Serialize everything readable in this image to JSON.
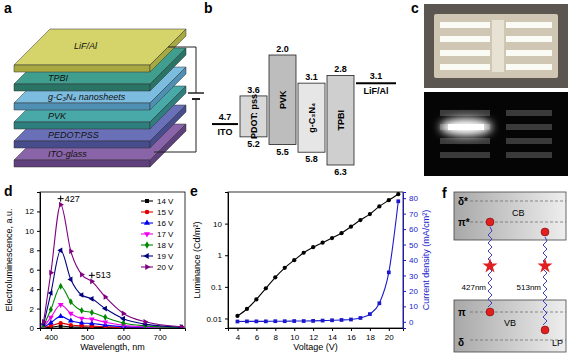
{
  "device_stack": {
    "panel_label": "a",
    "layers": [
      "LiF/Al",
      "TPBI",
      "g-C₃N₄ nanosheets",
      "PVK",
      "PEDOT:PSS",
      "ITO-glass"
    ]
  },
  "energy_diagram": {
    "panel_label": "b",
    "materials": [
      {
        "name": "ITO",
        "level": 4.7
      },
      {
        "name": "PDOT: pss",
        "lumo": 3.6,
        "homo": 5.2
      },
      {
        "name": "PVK",
        "lumo": {
          "value": 2,
          "label": "2.0"
        },
        "homo": 5.5
      },
      {
        "name": "g-C₃N₄",
        "lumo": 3.1,
        "homo": 5.8
      },
      {
        "name": "TPBI",
        "lumo": 2.8,
        "homo": 6.3
      },
      {
        "name": "LiF/Al",
        "level": 3.1
      }
    ]
  },
  "photos": {
    "panel_label": "c"
  },
  "chart_data": [
    {
      "panel_label": "d",
      "type": "line",
      "x_label": "Wavelength, nm",
      "y_label": "Electroluminescence, a.u.",
      "x": [
        380,
        400,
        427,
        455,
        485,
        513,
        550,
        600,
        660,
        760
      ],
      "xlim": [
        370,
        770
      ],
      "xticks": [
        400,
        500,
        600,
        700
      ],
      "ylim": [
        0,
        14
      ],
      "yticks": [
        0,
        2,
        4,
        6,
        8,
        10,
        12
      ],
      "legend": "upper right",
      "annotations": [
        "427",
        "513"
      ],
      "series": [
        {
          "name": "14 V",
          "color": "#000000",
          "marker": "square",
          "values": [
            0.01,
            0.09,
            0.2,
            0.12,
            0.09,
            0.08,
            0.05,
            0.02,
            0.01,
            0
          ]
        },
        {
          "name": "15 V",
          "color": "#e00000",
          "marker": "circle",
          "values": [
            0.03,
            0.23,
            0.5,
            0.31,
            0.22,
            0.19,
            0.13,
            0.06,
            0.03,
            0.01
          ]
        },
        {
          "name": "16 V",
          "color": "#0000ee",
          "marker": "triangle-up",
          "values": [
            0.06,
            0.54,
            1.2,
            0.74,
            0.52,
            0.46,
            0.3,
            0.14,
            0.06,
            0.01
          ]
        },
        {
          "name": "17 V",
          "color": "#ee00ee",
          "marker": "triangle-down",
          "values": [
            0.12,
            1.1,
            2.4,
            1.5,
            1.0,
            0.91,
            0.6,
            0.29,
            0.12,
            0.02
          ]
        },
        {
          "name": "18 V",
          "color": "#008800",
          "marker": "diamond",
          "values": [
            0.22,
            1.9,
            4.3,
            2.7,
            1.8,
            1.6,
            1.1,
            0.52,
            0.22,
            0.04
          ]
        },
        {
          "name": "19 V",
          "color": "#000080",
          "marker": "triangle-left",
          "values": [
            0.4,
            3.6,
            8.0,
            5.0,
            3.4,
            3.0,
            2.0,
            0.96,
            0.4,
            0.08
          ]
        },
        {
          "name": "20 V",
          "color": "#800080",
          "marker": "triangle-right",
          "values": [
            0.64,
            5.7,
            12.7,
            7.9,
            5.5,
            4.8,
            3.2,
            1.5,
            0.64,
            0.13
          ]
        }
      ]
    },
    {
      "panel_label": "e",
      "type": "line",
      "x_label": "Voltage (V)",
      "y_label": "Luminance (Cd/m²)",
      "y2_label": "Current density (mA/cm²)",
      "x": [
        4,
        5,
        6,
        7,
        8,
        9,
        10,
        11,
        12,
        13,
        14,
        15,
        16,
        17,
        18,
        19,
        20,
        21
      ],
      "xlim": [
        3,
        21.5
      ],
      "xticks": [
        4,
        6,
        8,
        10,
        12,
        14,
        16,
        18,
        20
      ],
      "log": "y",
      "ylim": [
        0.005,
        100
      ],
      "yticks": [
        0.01,
        0.1,
        1,
        10
      ],
      "y2lim": [
        -4,
        84
      ],
      "y2ticks": [
        0,
        10,
        20,
        30,
        40,
        50,
        60,
        70,
        80
      ],
      "series": [
        {
          "color": "#000000",
          "marker": "circle",
          "values": [
            0.012,
            0.02,
            0.04,
            0.09,
            0.2,
            0.4,
            0.7,
            1.2,
            1.8,
            2.5,
            3.5,
            5,
            8,
            13,
            20,
            35,
            55,
            85
          ]
        },
        {
          "color": "#1a1acc",
          "marker": "square",
          "axis": "y2",
          "values": [
            0.2,
            0.3,
            0.3,
            0.3,
            0.4,
            0.4,
            0.5,
            0.5,
            0.6,
            0.8,
            1,
            1.2,
            1.5,
            2.5,
            5,
            12,
            32,
            78
          ]
        }
      ]
    }
  ],
  "band_diagram": {
    "panel_label": "f",
    "upper_levels": [
      "δ*",
      "π*"
    ],
    "conduction_band": "CB",
    "lower_levels": [
      "π",
      "δ"
    ],
    "valence_band": "VB",
    "lone_pair": "LP",
    "emissions": [
      "427nm",
      "513nm"
    ]
  }
}
